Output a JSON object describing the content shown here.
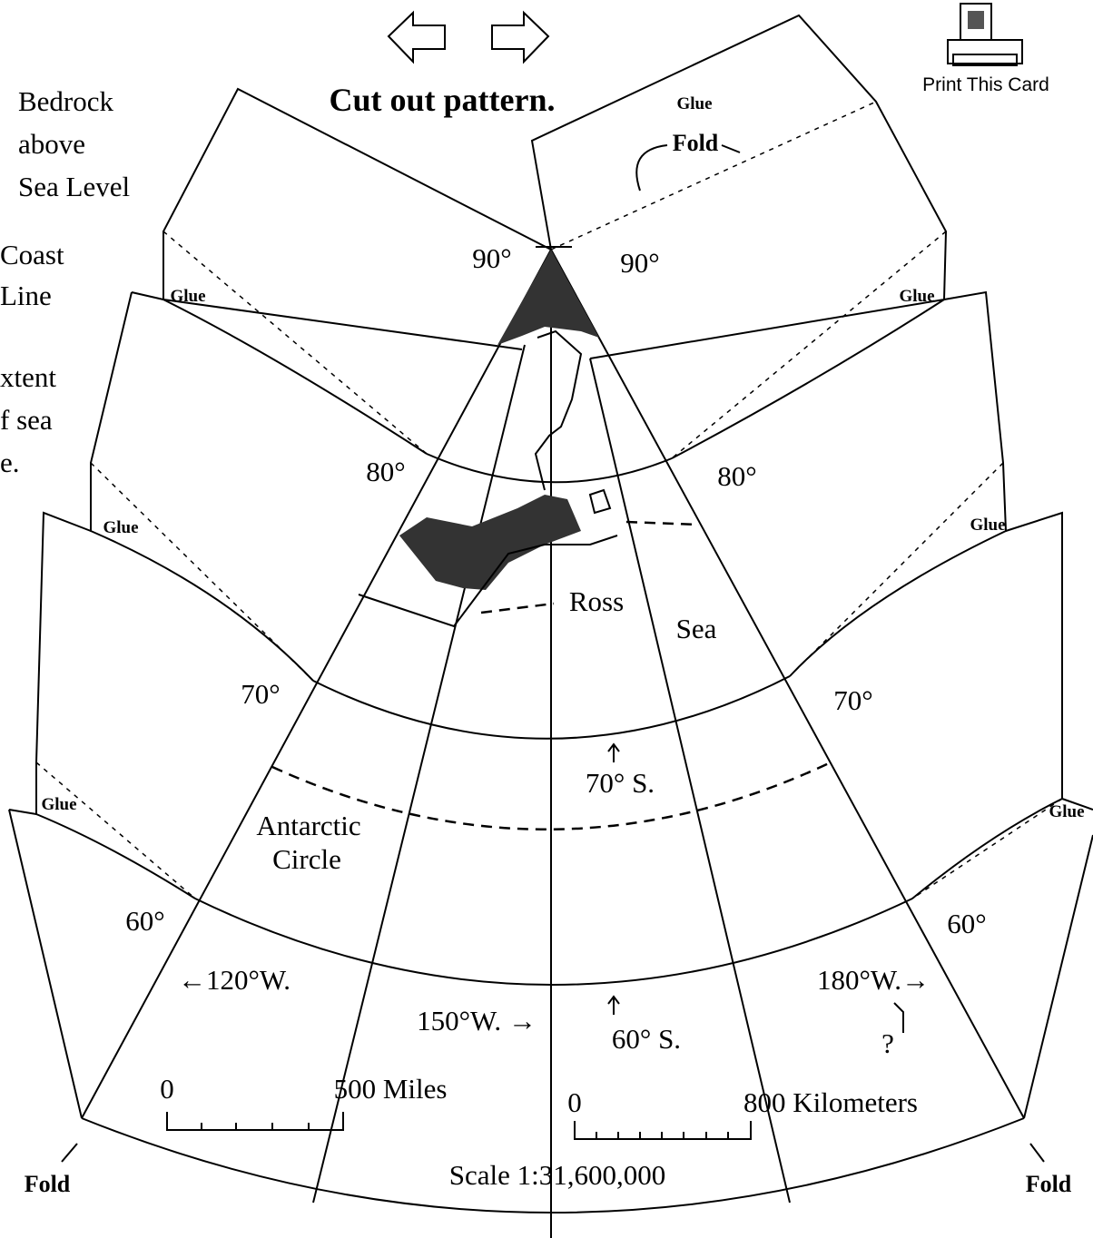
{
  "toolbar": {
    "print_label": "Print This Card"
  },
  "title": "Cut out pattern.",
  "legend": [
    "Bedrock",
    "above",
    "Sea Level",
    "Coast",
    "Line",
    "xtent",
    "f sea",
    "e."
  ],
  "glue_labels": [
    "Glue",
    "Glue",
    "Glue",
    "Glue",
    "Glue",
    "Glue",
    "Glue"
  ],
  "fold_labels": [
    "Fold",
    "Fold",
    "Fold"
  ],
  "latitude_labels": [
    "90°",
    "90°",
    "80°",
    "80°",
    "70°",
    "70°",
    "60°",
    "60°"
  ],
  "map_labels": {
    "ross": "Ross",
    "sea": "Sea",
    "lat_70s": "70° S.",
    "antarctic": "Antarctic",
    "circle": "Circle",
    "lon_120": "←120°W.",
    "lon_150": "150°W. →",
    "lat_60s": "60° S.",
    "lon_180": "180°W.→",
    "question": "?"
  },
  "scale": {
    "miles_zero": "0",
    "miles": "500 Miles",
    "km_zero": "0",
    "km": "800 Kilometers",
    "ratio": "Scale 1:31,600,000"
  }
}
